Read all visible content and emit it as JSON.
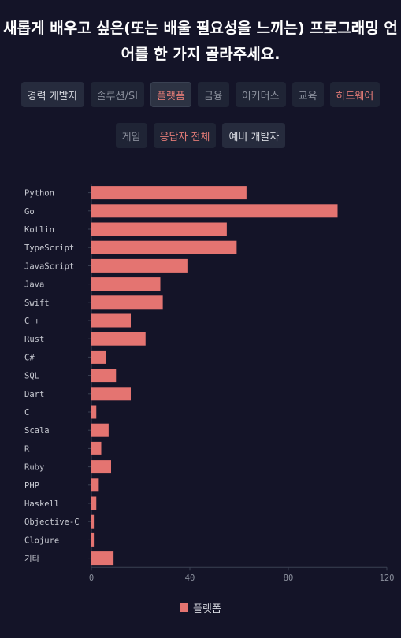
{
  "title": "새롭게 배우고 싶은(또는 배울 필요성을 느끼는) 프로그래밍 언어를 한 가지 골라주세요.",
  "filters": [
    {
      "label": "경력 개발자",
      "style": "strong"
    },
    {
      "label": "솔루션/SI",
      "style": "normal"
    },
    {
      "label": "플랫폼",
      "style": "red-selected"
    },
    {
      "label": "금융",
      "style": "normal"
    },
    {
      "label": "이커머스",
      "style": "normal"
    },
    {
      "label": "교육",
      "style": "normal"
    },
    {
      "label": "하드웨어",
      "style": "red"
    },
    {
      "label": "게임",
      "style": "normal"
    },
    {
      "label": "응답자 전체",
      "style": "red"
    },
    {
      "label": "예비 개발자",
      "style": "strong"
    }
  ],
  "colors": {
    "bar": "#e47471",
    "background": "#141428",
    "axis": "#3a4152"
  },
  "chart_data": {
    "type": "bar",
    "orientation": "horizontal",
    "categories": [
      "Python",
      "Go",
      "Kotlin",
      "TypeScript",
      "JavaScript",
      "Java",
      "Swift",
      "C++",
      "Rust",
      "C#",
      "SQL",
      "Dart",
      "C",
      "Scala",
      "R",
      "Ruby",
      "PHP",
      "Haskell",
      "Objective-C",
      "Clojure",
      "기타"
    ],
    "series": [
      {
        "name": "플랫폼",
        "values": [
          63,
          100,
          55,
          59,
          39,
          28,
          29,
          16,
          22,
          6,
          10,
          16,
          2,
          7,
          4,
          8,
          3,
          2,
          1,
          1,
          9
        ]
      }
    ],
    "xlim": [
      0,
      120
    ],
    "xticks": [
      0,
      40,
      80,
      120
    ],
    "legend": "bottom",
    "grid": false
  }
}
